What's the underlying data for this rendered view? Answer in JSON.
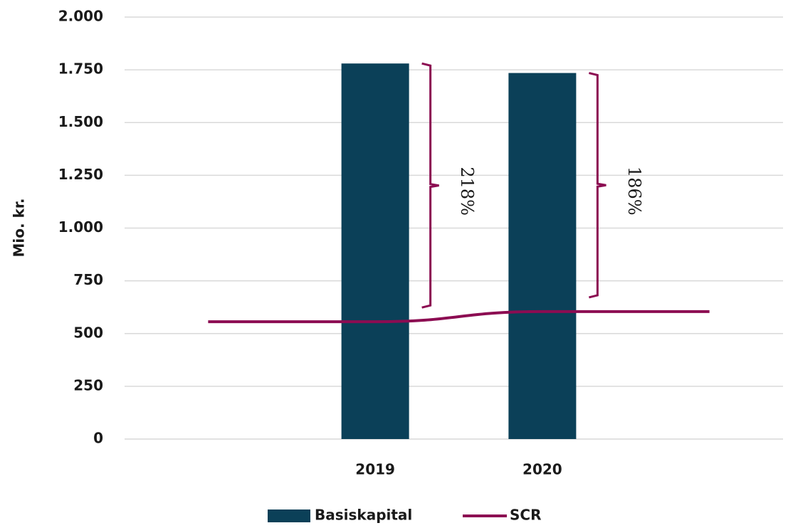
{
  "chart_data": {
    "type": "bar_line",
    "y_label": "Mio. kr.",
    "categories": [
      null,
      "2019",
      "2020",
      null
    ],
    "series": [
      {
        "name": "Basiskapital",
        "type": "bar",
        "color": "#0b4058",
        "values": [
          null,
          1780,
          1735,
          null
        ]
      },
      {
        "name": "SCR",
        "type": "line",
        "color": "#8c0c52",
        "values": [
          556,
          556,
          604,
          604
        ]
      }
    ],
    "annotations": [
      "218%",
      "186%"
    ],
    "ylim": [
      0,
      2000
    ],
    "yticks": [
      0,
      250,
      500,
      750,
      {
        "value": 1000,
        "label": "1.000"
      },
      {
        "value": 1250,
        "label": "1.250"
      },
      {
        "value": 1500,
        "label": "1.500"
      },
      {
        "value": 1750,
        "label": "1.750"
      },
      {
        "value": 2000,
        "label": "2.000"
      }
    ],
    "grid": true
  }
}
